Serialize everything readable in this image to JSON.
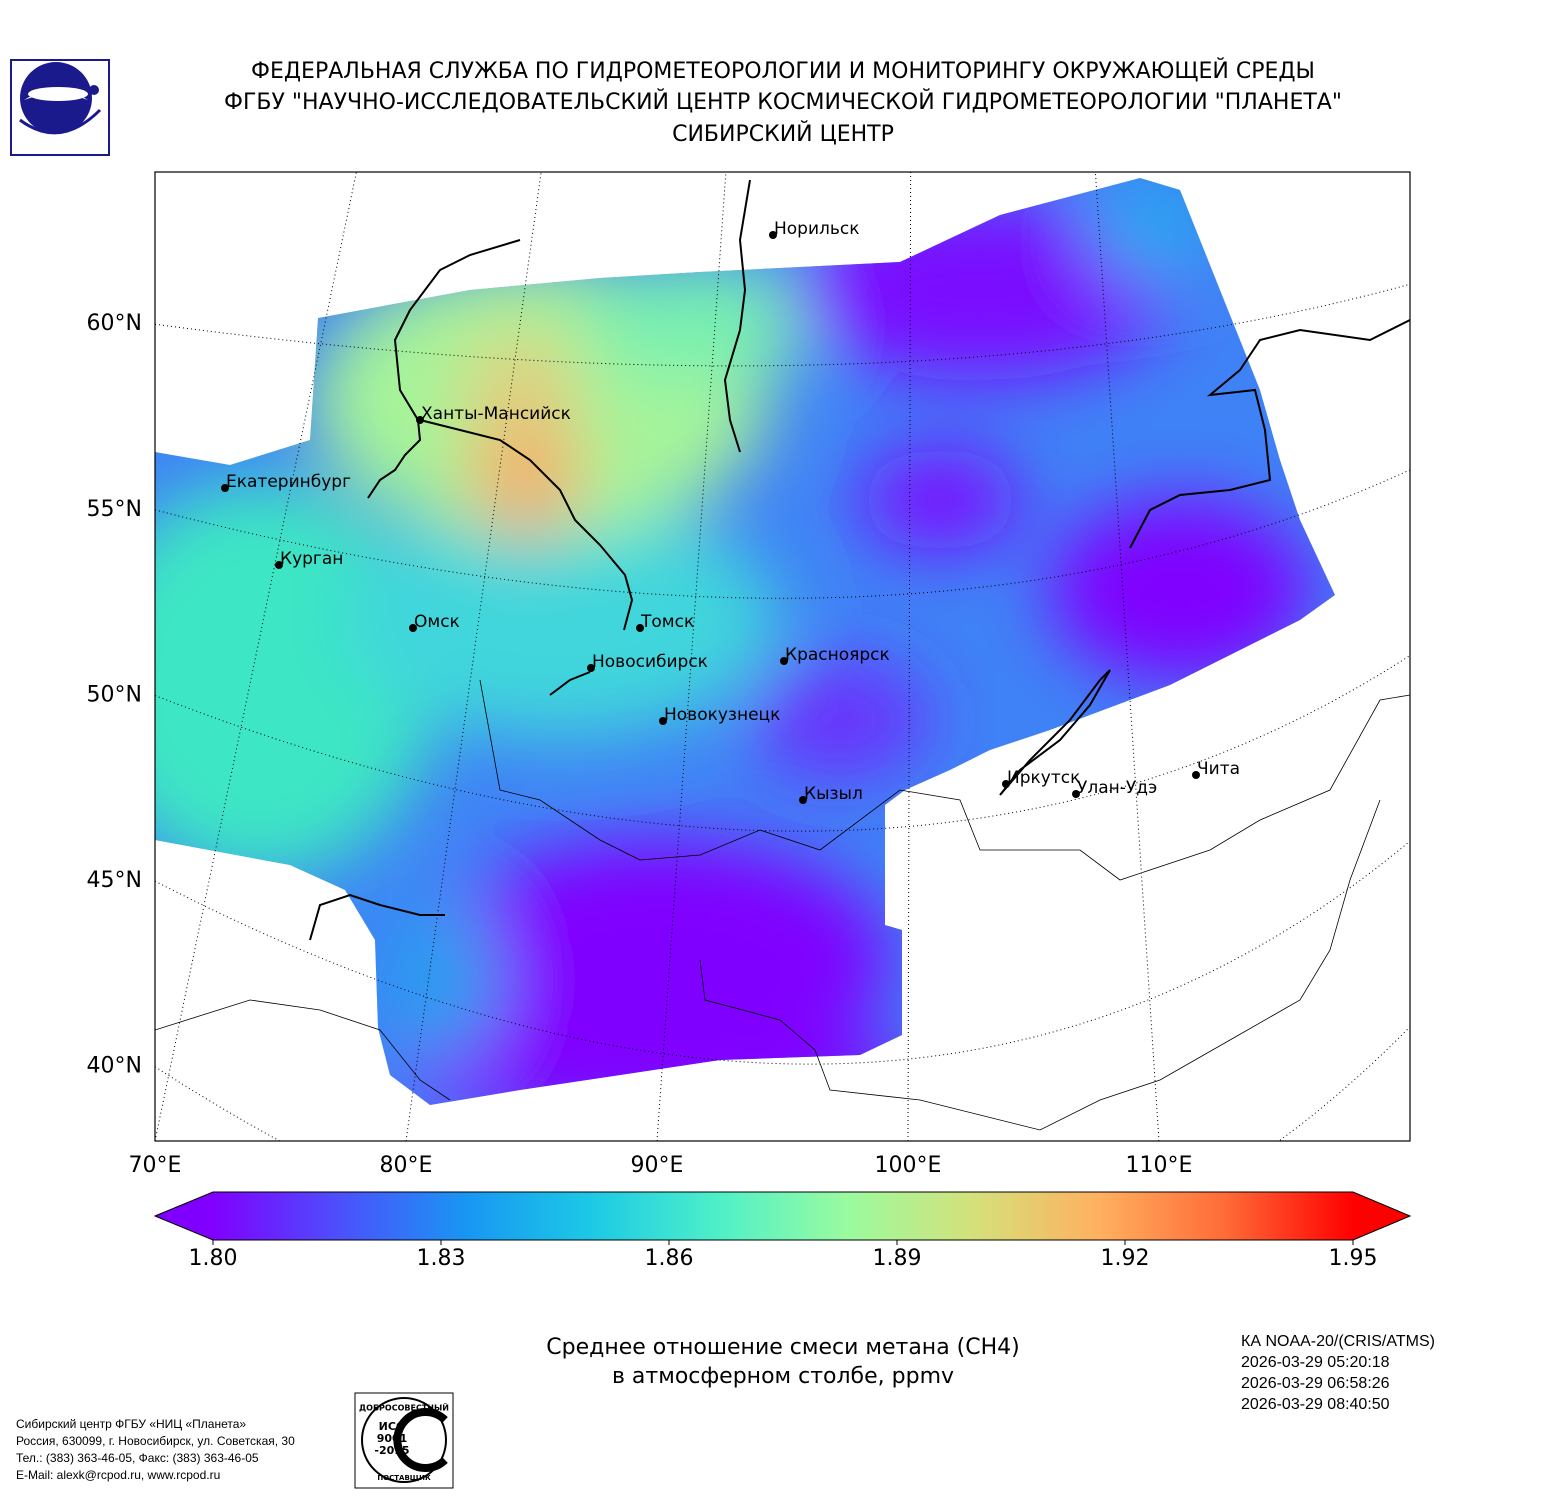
{
  "header": {
    "lines": [
      "ФЕДЕРАЛЬНАЯ СЛУЖБА ПО ГИДРОМЕТЕОРОЛОГИИ И МОНИТОРИНГУ ОКРУЖАЮЩЕЙ СРЕДЫ",
      "ФГБУ \"НАУЧНО-ИССЛЕДОВАТЕЛЬСКИЙ ЦЕНТР КОСМИЧЕСКОЙ ГИДРОМЕТЕОРОЛОГИИ \"ПЛАНЕТА\"",
      "СИБИРСКИЙ ЦЕНТР"
    ]
  },
  "map": {
    "lonlim": [
      70,
      120
    ],
    "latlim": [
      38,
      64.1
    ],
    "lat_ticks": [
      {
        "value": 60,
        "label": "60°N"
      },
      {
        "value": 55,
        "label": "55°N"
      },
      {
        "value": 50,
        "label": "50°N"
      },
      {
        "value": 45,
        "label": "45°N"
      },
      {
        "value": 40,
        "label": "40°N"
      }
    ],
    "lon_ticks": [
      {
        "value": 70,
        "label": "70°E"
      },
      {
        "value": 80,
        "label": "80°E"
      },
      {
        "value": 90,
        "label": "90°E"
      },
      {
        "value": 100,
        "label": "100°E"
      },
      {
        "value": 110,
        "label": "110°E"
      }
    ],
    "cities": [
      "Норильск",
      "Ханты-Мансийск",
      "Екатеринбург",
      "Курган",
      "Омск",
      "Томск",
      "Новосибирск",
      "Красноярск",
      "Новокузнецк",
      "Кызыл",
      "Иркутск",
      "Улан-Удэ",
      "Чита"
    ]
  },
  "colorbar": {
    "lim": [
      1.8,
      1.95
    ],
    "extend": "both",
    "ticks": [
      {
        "value": 1.8,
        "label": "1.80"
      },
      {
        "value": 1.83,
        "label": "1.83"
      },
      {
        "value": 1.86,
        "label": "1.86"
      },
      {
        "value": 1.89,
        "label": "1.89"
      },
      {
        "value": 1.92,
        "label": "1.92"
      },
      {
        "value": 1.95,
        "label": "1.95"
      }
    ],
    "colors": [
      "#8000ff",
      "#4c50fc",
      "#1996f3",
      "#1ccae5",
      "#4ff0c8",
      "#99fba0",
      "#d4e17a",
      "#ffb060",
      "#ff6a36",
      "#ff0000"
    ]
  },
  "caption": {
    "lines": [
      "Среднее отношение смеси метана (CH4)",
      "в атмосферном столбе, ppmv"
    ]
  },
  "satellite": {
    "lines": [
      "КА NOAA-20/(CRIS/ATMS)",
      "2026-03-29 05:20:18",
      "2026-03-29 06:58:26",
      "2026-03-29 08:40:50"
    ]
  },
  "footer": {
    "lines": [
      "Сибирский центр ФГБУ «НИЦ «Планета»",
      "Россия, 630099, г. Новосибирск, ул. Советская, 30",
      "Тел.: (383) 363-46-05, Факс: (383) 363-46-05",
      "E-Mail: alexk@rcpod.ru, www.rcpod.ru"
    ]
  },
  "iso_logo": {
    "top": "ДОБРОСОВЕСТНЫЙ",
    "lines": [
      "ИСО",
      "9001",
      "-2015"
    ],
    "bottom": "ПОСТАВЩИК"
  }
}
